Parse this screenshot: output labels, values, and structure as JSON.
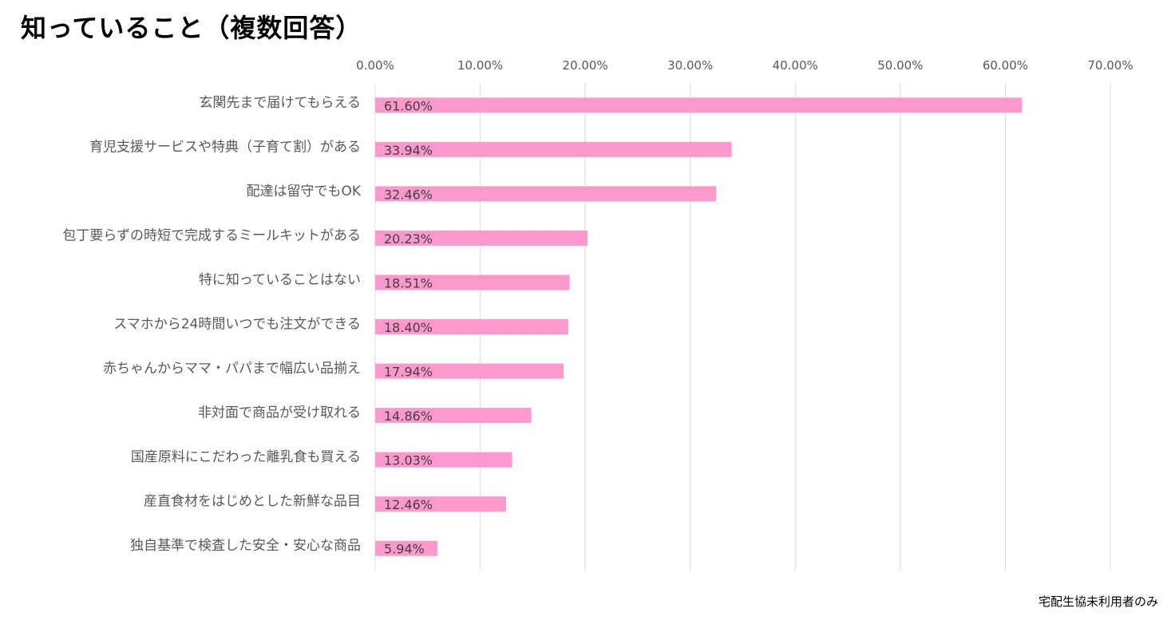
{
  "title": "知っていること（複数回答）",
  "footnote": "宅配生協未利用者のみ",
  "colors": {
    "bar": "#ff99cc",
    "gridline": "#d9d9d9",
    "text": "#595959"
  },
  "chart_data": {
    "type": "bar",
    "orientation": "horizontal",
    "title": "知っていること（複数回答）",
    "xlabel": "",
    "ylabel": "",
    "xlim": [
      0,
      70
    ],
    "x_ticks": [
      "0.00%",
      "10.00%",
      "20.00%",
      "30.00%",
      "40.00%",
      "50.00%",
      "60.00%",
      "70.00%"
    ],
    "grid": true,
    "legend": "none",
    "categories": [
      "玄関先まで届けてもらえる",
      "育児支援サービスや特典（子育て割）がある",
      "配達は留守でもOK",
      "包丁要らずの時短で完成するミールキットがある",
      "特に知っていることはない",
      "スマホから24時間いつでも注文ができる",
      "赤ちゃんからママ・パパまで幅広い品揃え",
      "非対面で商品が受け取れる",
      "国産原料にこだわった離乳食も買える",
      "産直食材をはじめとした新鮮な品目",
      "独自基準で検査した安全・安心な商品"
    ],
    "values": [
      61.6,
      33.94,
      32.46,
      20.23,
      18.51,
      18.4,
      17.94,
      14.86,
      13.03,
      12.46,
      5.94
    ],
    "data_labels": [
      "61.60%",
      "33.94%",
      "32.46%",
      "20.23%",
      "18.51%",
      "18.40%",
      "17.94%",
      "14.86%",
      "13.03%",
      "12.46%",
      "5.94%"
    ]
  }
}
